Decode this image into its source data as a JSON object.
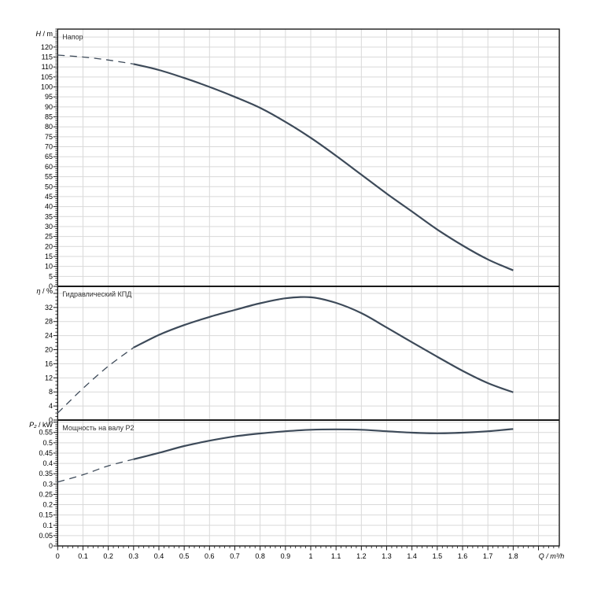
{
  "colors": {
    "background": "#ffffff",
    "curve": "#3d4a59",
    "grid": "#d9d9d9",
    "frame": "#1a1a1a",
    "text": "#000000",
    "title_text": "#333333"
  },
  "x_axis": {
    "label": "Q / m³/h",
    "min": 0,
    "max": 1.98,
    "major_step": 0.1,
    "minor_step": 0.02,
    "tick_labels": [
      "0",
      "0.1",
      "0.2",
      "0.3",
      "0.4",
      "0.5",
      "0.6",
      "0.7",
      "0.8",
      "0.9",
      "1",
      "1.1",
      "1.2",
      "1.3",
      "1.4",
      "1.5",
      "1.6",
      "1.7",
      "1.8"
    ]
  },
  "chart_data": [
    {
      "type": "line",
      "title": "Напор",
      "ylabel": "H / m",
      "ylabel_var": "H",
      "ylabel_rest": " / m",
      "xlabel": "Q / m³/h",
      "x": [
        0,
        0.1,
        0.2,
        0.3,
        0.4,
        0.5,
        0.6,
        0.7,
        0.8,
        0.9,
        1.0,
        1.1,
        1.2,
        1.3,
        1.4,
        1.5,
        1.6,
        1.7,
        1.8
      ],
      "y": [
        116,
        115,
        113.5,
        111.5,
        108.5,
        104.5,
        100,
        95,
        89.5,
        82.5,
        74.5,
        65.5,
        56,
        46.5,
        37.5,
        28.5,
        20.5,
        13.5,
        8
      ],
      "ylim": [
        0,
        129
      ],
      "ytick_step": 5,
      "yminor_step": 1,
      "ytick_labels": [
        "0",
        "5",
        "10",
        "15",
        "20",
        "25",
        "30",
        "35",
        "40",
        "45",
        "50",
        "55",
        "60",
        "65",
        "70",
        "75",
        "80",
        "85",
        "90",
        "95",
        "100",
        "105",
        "110",
        "115",
        "120"
      ],
      "dashed_until_x": 0.3,
      "grid": true,
      "legend": "none"
    },
    {
      "type": "line",
      "title": "Гидравлический КПД",
      "ylabel": "η / %",
      "ylabel_var": "η",
      "ylabel_rest": " / %",
      "xlabel": "Q / m³/h",
      "x": [
        0,
        0.1,
        0.2,
        0.3,
        0.4,
        0.5,
        0.6,
        0.7,
        0.8,
        0.9,
        1.0,
        1.1,
        1.2,
        1.3,
        1.4,
        1.5,
        1.6,
        1.7,
        1.8
      ],
      "y": [
        2,
        9,
        15.3,
        20.6,
        24.2,
        27,
        29.3,
        31.3,
        33.2,
        34.6,
        34.9,
        33.3,
        30.4,
        26.3,
        22.1,
        18,
        14,
        10.5,
        7.9
      ],
      "ylim": [
        0,
        38
      ],
      "ytick_step": 4,
      "yminor_step": 1,
      "ytick_labels": [
        "0",
        "4",
        "8",
        "12",
        "16",
        "20",
        "24",
        "28",
        "32"
      ],
      "dashed_until_x": 0.3,
      "grid": true,
      "legend": "none"
    },
    {
      "type": "line",
      "title": "Мощность на валу P2",
      "ylabel": "P₂ / kW",
      "ylabel_var": "P₂",
      "ylabel_rest": " / kW",
      "xlabel": "Q / m³/h",
      "x": [
        0,
        0.1,
        0.2,
        0.3,
        0.4,
        0.5,
        0.6,
        0.7,
        0.8,
        0.9,
        1.0,
        1.1,
        1.2,
        1.3,
        1.4,
        1.5,
        1.6,
        1.7,
        1.8
      ],
      "y": [
        0.31,
        0.345,
        0.388,
        0.42,
        0.451,
        0.484,
        0.51,
        0.531,
        0.545,
        0.556,
        0.563,
        0.565,
        0.563,
        0.556,
        0.549,
        0.546,
        0.549,
        0.556,
        0.567
      ],
      "ylim": [
        0,
        0.61
      ],
      "ytick_step": 0.05,
      "yminor_step": 0.01,
      "ytick_labels": [
        "0",
        "0.05",
        "0.1",
        "0.15",
        "0.2",
        "0.25",
        "0.3",
        "0.35",
        "0.4",
        "0.45",
        "0.5",
        "0.55"
      ],
      "dashed_until_x": 0.3,
      "grid": true,
      "legend": "none"
    }
  ]
}
